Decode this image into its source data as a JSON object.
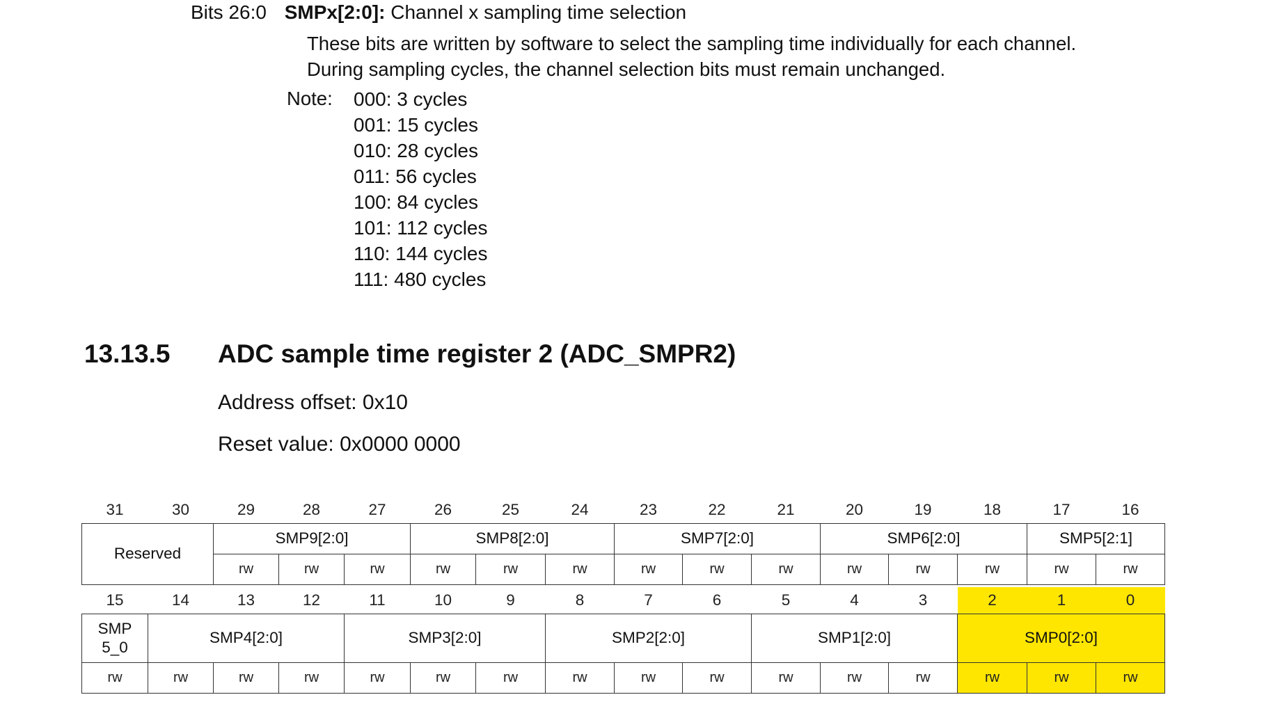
{
  "field_desc": {
    "bits_range": "Bits 26:0",
    "field_name": "SMPx[2:0]:",
    "field_title": "Channel x sampling time selection",
    "paragraph": [
      "These bits are written by software to select the sampling time individually for each channel.",
      "During sampling cycles, the channel selection bits must remain unchanged."
    ],
    "note_label": "Note:",
    "notes": [
      "000: 3 cycles",
      "001: 15 cycles",
      "010: 28 cycles",
      "011: 56 cycles",
      "100: 84 cycles",
      "101: 112 cycles",
      "110: 144 cycles",
      "111: 480 cycles"
    ]
  },
  "section": {
    "number": "13.13.5",
    "title": "ADC sample time register 2 (ADC_SMPR2)",
    "address_offset": "Address offset: 0x10",
    "reset_value": "Reset value: 0x0000 0000"
  },
  "register": {
    "access": "rw",
    "upper_bits": [
      "31",
      "30",
      "29",
      "28",
      "27",
      "26",
      "25",
      "24",
      "23",
      "22",
      "21",
      "20",
      "19",
      "18",
      "17",
      "16"
    ],
    "upper_fields": [
      "Reserved",
      "SMP9[2:0]",
      "SMP8[2:0]",
      "SMP7[2:0]",
      "SMP6[2:0]",
      "SMP5[2:1]"
    ],
    "lower_bits": [
      "15",
      "14",
      "13",
      "12",
      "11",
      "10",
      "9",
      "8",
      "7",
      "6",
      "5",
      "4",
      "3",
      "2",
      "1",
      "0"
    ],
    "lower_fields": [
      "SMP\n5_0",
      "SMP4[2:0]",
      "SMP3[2:0]",
      "SMP2[2:0]",
      "SMP1[2:0]",
      "SMP0[2:0]"
    ],
    "highlight_color": "#ffe600"
  }
}
